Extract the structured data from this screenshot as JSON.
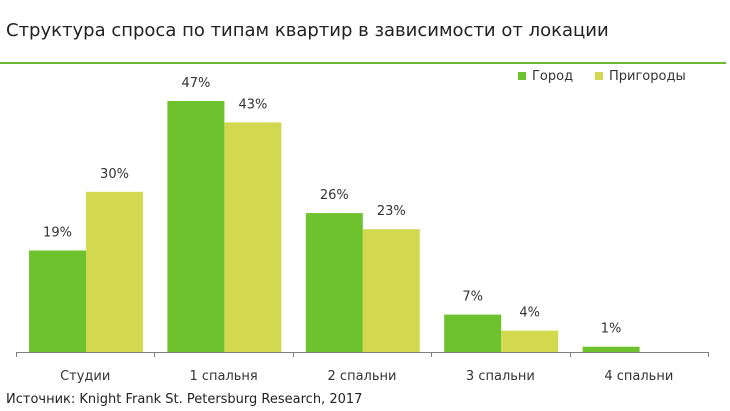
{
  "title": "Структура спроса по типам квартир в зависимости от локации",
  "source": "Источник: Knight Frank St. Petersburg Research, 2017",
  "colors": {
    "rule": "#6bb82e",
    "axis": "#7f7f7f"
  },
  "chart_data": {
    "type": "bar",
    "title": "Структура спроса по типам квартир в зависимости от локации",
    "categories": [
      "Студии",
      "1 спальня",
      "2 спальни",
      "3 спальни",
      "4 спальни"
    ],
    "series": [
      {
        "name": "Город",
        "color": "#6ec22e",
        "values": [
          19,
          47,
          26,
          7,
          1
        ]
      },
      {
        "name": "Пригороды",
        "color": "#d2d94f",
        "values": [
          30,
          43,
          23,
          4,
          null
        ]
      }
    ],
    "data_labels": [
      [
        "19%",
        "47%",
        "26%",
        "7%",
        "1%"
      ],
      [
        "30%",
        "43%",
        "23%",
        "4%",
        ""
      ]
    ],
    "ylim": [
      0,
      47
    ],
    "legend": "top-right",
    "grid": false
  }
}
